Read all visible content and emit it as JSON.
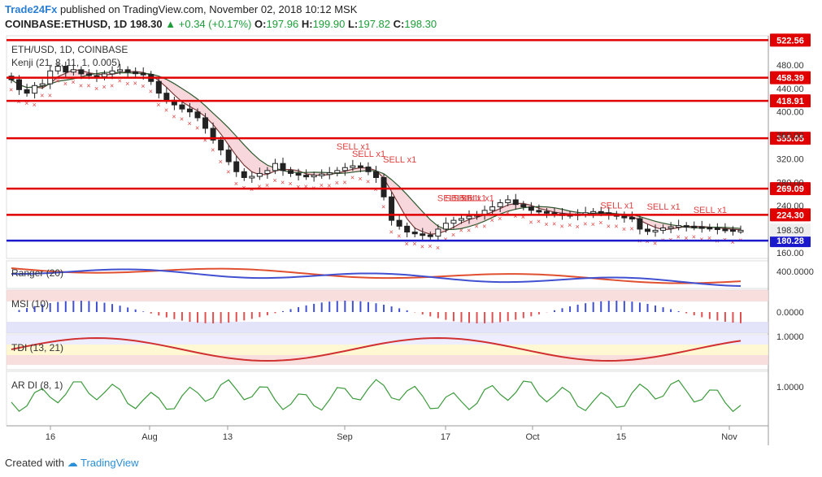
{
  "header": {
    "publisher": "Trade24Fx",
    "published_text": "published on TradingView.com, November 02, 2018 10:12 MSK",
    "symbol": "COINBASE:ETHUSD, 1D",
    "price": "198.30",
    "change": "+0.34 (+0.17%)",
    "o_label": "O:",
    "o": "197.96",
    "h_label": "H:",
    "h": "199.90",
    "l_label": "L:",
    "l": "197.82",
    "c_label": "C:",
    "c": "198.30"
  },
  "chart_data": {
    "type": "candlestick",
    "title": "ETH/USD, 1D, COINBASE",
    "indicator": "Kenji (21, 8, 11, 1, 0.005)",
    "y_ticks": [
      160,
      198.3,
      240,
      280,
      320,
      360,
      400,
      440,
      480
    ],
    "ylim": [
      150,
      530
    ],
    "x_ticks": [
      "16",
      "Aug",
      "13",
      "Sep",
      "17",
      "Oct",
      "15",
      "Nov"
    ],
    "horizontal_levels": [
      {
        "value": 522.56,
        "label": "522.56",
        "color": "#e00000"
      },
      {
        "value": 458.39,
        "label": "458.39",
        "color": "#e00000"
      },
      {
        "value": 418.91,
        "label": "418.91",
        "color": "#e00000"
      },
      {
        "value": 355.05,
        "label": "355.05",
        "color": "#e00000"
      },
      {
        "value": 269.09,
        "label": "269.09",
        "color": "#e00000"
      },
      {
        "value": 224.3,
        "label": "224.30",
        "color": "#e00000"
      },
      {
        "value": 180.28,
        "label": "180.28",
        "color": "#1a1acc"
      }
    ],
    "close_series": [
      455,
      438,
      432,
      445,
      448,
      470,
      478,
      468,
      472,
      465,
      462,
      460,
      465,
      470,
      472,
      468,
      466,
      464,
      452,
      432,
      420,
      412,
      405,
      400,
      390,
      372,
      352,
      335,
      315,
      298,
      288,
      290,
      295,
      300,
      312,
      300,
      295,
      292,
      290,
      292,
      294,
      296,
      300,
      305,
      308,
      306,
      298,
      288,
      255,
      215,
      205,
      195,
      192,
      190,
      188,
      200,
      210,
      215,
      218,
      222,
      225,
      232,
      238,
      245,
      250,
      242,
      238,
      232,
      230,
      228,
      226,
      225,
      224,
      226,
      228,
      230,
      228,
      225,
      222,
      220,
      218,
      200,
      196,
      198,
      202,
      204,
      206,
      205,
      204,
      203,
      202,
      200,
      199,
      198,
      198
    ],
    "sell_signals": [
      {
        "label": "SELL x1",
        "value": 330
      },
      {
        "label": "SELL x1",
        "value": 318
      },
      {
        "label": "SELL x1",
        "value": 308
      },
      {
        "label": "SELL x1",
        "value": 242
      },
      {
        "label": "SELL x1",
        "value": 242
      },
      {
        "label": "SELL x1",
        "value": 242
      },
      {
        "label": "SELL x1",
        "value": 242
      },
      {
        "label": "SELL x1",
        "value": 230
      },
      {
        "label": "SELL x1",
        "value": 228
      },
      {
        "label": "SELL x1",
        "value": 222
      }
    ],
    "panels": [
      {
        "name": "Ranger (20)",
        "axis_label": "400.0000"
      },
      {
        "name": "MSI (10)",
        "axis_label": "0.0000"
      },
      {
        "name": "TDI (13, 21)",
        "axis_label": "1.0000"
      },
      {
        "name": "AR DI (8, 1)",
        "axis_label": "1.0000"
      }
    ]
  },
  "footer": {
    "created_with": "Created with",
    "brand": "TradingView"
  },
  "colors": {
    "candle": "#222222",
    "ribbon_fill": "#f6c9d0",
    "ribbon_fill_bull": "#cfe8cf",
    "sell_marker": "#e04040",
    "axis_text": "#333333"
  }
}
